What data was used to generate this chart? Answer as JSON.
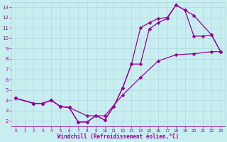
{
  "bg_color": "#c8eef0",
  "grid_color": "#b0d8dc",
  "line_color": "#990099",
  "xlabel": "Windchill (Refroidissement éolien,°C)",
  "xlabel_color": "#990099",
  "xlim": [
    -0.5,
    23.5
  ],
  "ylim": [
    1.5,
    13.5
  ],
  "xticks": [
    0,
    1,
    2,
    3,
    4,
    5,
    6,
    7,
    8,
    9,
    10,
    11,
    12,
    13,
    14,
    15,
    16,
    17,
    18,
    19,
    20,
    21,
    22,
    23
  ],
  "yticks": [
    2,
    3,
    4,
    5,
    6,
    7,
    8,
    9,
    10,
    11,
    12,
    13
  ],
  "line1_x": [
    0,
    2,
    3,
    4,
    5,
    6,
    7,
    8,
    9,
    10,
    11,
    12,
    13,
    14,
    15,
    16,
    17,
    18,
    19,
    20,
    21,
    22,
    23
  ],
  "line1_y": [
    4.2,
    3.7,
    3.7,
    4.0,
    3.4,
    3.3,
    1.9,
    1.9,
    2.5,
    2.1,
    3.4,
    5.2,
    7.5,
    7.5,
    10.9,
    11.5,
    11.9,
    13.2,
    12.7,
    10.2,
    10.2,
    10.3,
    8.7
  ],
  "line2_x": [
    0,
    2,
    3,
    4,
    5,
    6,
    7,
    8,
    9,
    10,
    11,
    12,
    13,
    14,
    15,
    16,
    17,
    18,
    19,
    20,
    22,
    23
  ],
  "line2_y": [
    4.2,
    3.7,
    3.7,
    4.0,
    3.4,
    3.3,
    1.9,
    1.9,
    2.5,
    2.1,
    3.4,
    5.2,
    7.5,
    11.0,
    11.5,
    11.9,
    12.0,
    13.2,
    12.7,
    12.2,
    10.3,
    8.7
  ],
  "line3_x": [
    0,
    2,
    3,
    4,
    5,
    6,
    8,
    10,
    12,
    14,
    16,
    18,
    20,
    22,
    23
  ],
  "line3_y": [
    4.2,
    3.7,
    3.7,
    4.0,
    3.4,
    3.3,
    2.5,
    2.5,
    4.5,
    6.2,
    7.8,
    8.4,
    8.5,
    8.7,
    8.7
  ],
  "markersize": 2.5,
  "linewidth": 0.9
}
